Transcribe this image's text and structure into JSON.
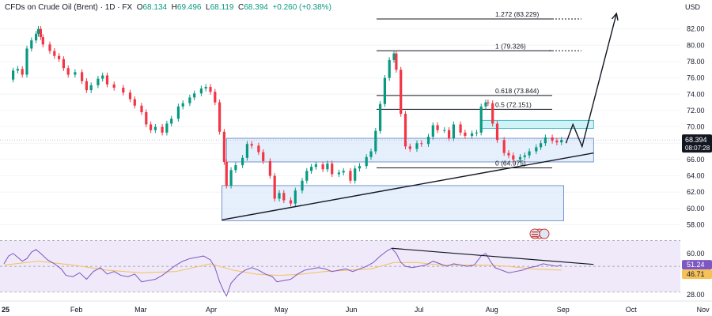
{
  "header": {
    "symbol_line": "CFDs on Crude Oil (Brent) · 1D · FX",
    "open_label": "O",
    "open": "68.134",
    "high_label": "H",
    "high": "69.496",
    "low_label": "L",
    "low": "68.119",
    "close_label": "C",
    "close": "68.394",
    "change": "+0.260 (+0.38%)",
    "currency": "USD"
  },
  "colors": {
    "up": "#089981",
    "down": "#f23645",
    "zone_fill": "#dbe8fb",
    "zone_stroke": "#5b7fbf",
    "cyan_fill": "#bff0f5",
    "cyan_stroke": "#2aa6b8",
    "rsi_line": "#7e57c2",
    "rsi_ma": "#f5c15b",
    "rsi_band": "#efe9f9",
    "price_tag": "#131722"
  },
  "chart_data": [
    {
      "type": "candlestick",
      "title": "",
      "ylabel": "",
      "ylim": [
        56.5,
        84.0
      ],
      "y_ticks": [
        58.0,
        60.0,
        62.0,
        64.0,
        66.0,
        68.0,
        70.0,
        72.0,
        74.0,
        76.0,
        78.0,
        80.0,
        82.0
      ],
      "x_labels": [
        "25",
        "Feb",
        "Mar",
        "Apr",
        "May",
        "Jun",
        "Jul",
        "Aug",
        "Sep",
        "Oct",
        "Nov"
      ],
      "x_label_days": [
        0,
        31,
        59,
        90,
        120,
        151,
        181,
        212,
        243,
        273,
        304
      ],
      "close_series": [
        [
          2,
          75.8
        ],
        [
          4,
          76.9
        ],
        [
          6,
          77.1
        ],
        [
          8,
          76.4
        ],
        [
          10,
          79.6
        ],
        [
          12,
          80.6
        ],
        [
          14,
          81.4
        ],
        [
          15,
          82.0
        ],
        [
          16,
          81.0
        ],
        [
          17,
          80.1
        ],
        [
          20,
          79.3
        ],
        [
          22,
          78.7
        ],
        [
          24,
          78.3
        ],
        [
          26,
          77.2
        ],
        [
          28,
          76.4
        ],
        [
          31,
          76.7
        ],
        [
          34,
          75.6
        ],
        [
          36,
          74.5
        ],
        [
          38,
          75.1
        ],
        [
          41,
          75.9
        ],
        [
          43,
          76.3
        ],
        [
          45,
          75.2
        ],
        [
          48,
          74.8
        ],
        [
          52,
          74.2
        ],
        [
          55,
          73.4
        ],
        [
          57,
          72.6
        ],
        [
          60,
          71.8
        ],
        [
          62,
          70.3
        ],
        [
          64,
          69.6
        ],
        [
          66,
          70.0
        ],
        [
          69,
          69.3
        ],
        [
          71,
          70.4
        ],
        [
          73,
          71.0
        ],
        [
          76,
          72.5
        ],
        [
          78,
          72.9
        ],
        [
          81,
          73.6
        ],
        [
          83,
          74.1
        ],
        [
          86,
          74.7
        ],
        [
          88,
          74.9
        ],
        [
          90,
          74.3
        ],
        [
          92,
          73.0
        ],
        [
          94,
          69.4
        ],
        [
          96,
          65.7
        ],
        [
          97,
          62.8
        ],
        [
          99,
          64.7
        ],
        [
          101,
          65.3
        ],
        [
          104,
          66.2
        ],
        [
          106,
          67.9
        ],
        [
          108,
          67.7
        ],
        [
          111,
          66.9
        ],
        [
          113,
          65.8
        ],
        [
          116,
          64.0
        ],
        [
          118,
          61.2
        ],
        [
          120,
          61.9
        ],
        [
          122,
          61.0
        ],
        [
          125,
          60.6
        ],
        [
          127,
          62.2
        ],
        [
          130,
          63.4
        ],
        [
          132,
          64.6
        ],
        [
          134,
          65.1
        ],
        [
          136,
          65.4
        ],
        [
          139,
          64.8
        ],
        [
          141,
          65.5
        ],
        [
          143,
          64.2
        ],
        [
          146,
          64.4
        ],
        [
          148,
          64.6
        ],
        [
          151,
          63.4
        ],
        [
          153,
          64.9
        ],
        [
          155,
          65.2
        ],
        [
          158,
          66.3
        ],
        [
          160,
          67.0
        ],
        [
          162,
          69.5
        ],
        [
          164,
          72.8
        ],
        [
          166,
          76.0
        ],
        [
          168,
          78.2
        ],
        [
          170,
          79.0
        ],
        [
          171,
          77.0
        ],
        [
          173,
          71.6
        ],
        [
          175,
          67.6
        ],
        [
          177,
          67.3
        ],
        [
          180,
          68.0
        ],
        [
          182,
          67.9
        ],
        [
          185,
          68.8
        ],
        [
          187,
          70.2
        ],
        [
          189,
          69.6
        ],
        [
          192,
          69.6
        ],
        [
          194,
          68.6
        ],
        [
          196,
          70.3
        ],
        [
          199,
          69.3
        ],
        [
          201,
          68.9
        ],
        [
          204,
          69.2
        ],
        [
          206,
          69.3
        ],
        [
          208,
          72.5
        ],
        [
          210,
          73.0
        ],
        [
          211,
          72.9
        ],
        [
          213,
          70.4
        ],
        [
          215,
          68.4
        ],
        [
          218,
          66.8
        ],
        [
          220,
          66.5
        ],
        [
          222,
          66.0
        ],
        [
          225,
          66.3
        ],
        [
          227,
          66.5
        ],
        [
          229,
          67.0
        ],
        [
          232,
          67.5
        ],
        [
          234,
          68.0
        ],
        [
          236,
          68.7
        ],
        [
          239,
          68.3
        ],
        [
          241,
          68.1
        ],
        [
          243,
          68.4
        ]
      ],
      "annotations": {
        "fib_levels": [
          {
            "ratio": "1.272",
            "value": 83.229
          },
          {
            "ratio": "1",
            "value": 79.326
          },
          {
            "ratio": "0.618",
            "value": 73.844
          },
          {
            "ratio": "0.5",
            "value": 72.151
          },
          {
            "ratio": "0",
            "value": 64.975
          }
        ],
        "fib_label_format": "{ratio} ({value})",
        "zones": [
          {
            "from_day": 97,
            "to_day": 257,
            "low": 65.7,
            "high": 68.6
          },
          {
            "from_day": 95,
            "to_day": 244,
            "low": 58.5,
            "high": 62.8
          },
          {
            "from_day": 208,
            "to_day": 257,
            "low": 69.8,
            "high": 70.8
          }
        ],
        "trendline": [
          [
            95,
            58.6
          ],
          [
            257,
            66.8
          ]
        ],
        "projection": [
          [
            245,
            68.0
          ],
          [
            248,
            70.3
          ],
          [
            252,
            67.6
          ],
          [
            267,
            83.9
          ]
        ]
      },
      "current_price": "68.394",
      "countdown": "08:07:28"
    },
    {
      "type": "line",
      "title": "",
      "ylim": [
        25,
        66
      ],
      "y_ticks": [
        60.0,
        28.0
      ],
      "levels": [
        70,
        50,
        30
      ],
      "rsi_value": "51.24",
      "rsi_ma_value": "46.71",
      "rsi_series": [
        [
          0,
          52
        ],
        [
          2,
          58
        ],
        [
          4,
          60
        ],
        [
          6,
          57
        ],
        [
          8,
          54
        ],
        [
          10,
          56
        ],
        [
          12,
          61
        ],
        [
          14,
          63
        ],
        [
          16,
          60
        ],
        [
          19,
          55
        ],
        [
          22,
          52
        ],
        [
          25,
          48
        ],
        [
          27,
          43
        ],
        [
          30,
          42
        ],
        [
          33,
          45
        ],
        [
          36,
          40
        ],
        [
          39,
          46
        ],
        [
          42,
          49
        ],
        [
          45,
          44
        ],
        [
          48,
          46
        ],
        [
          51,
          43
        ],
        [
          54,
          42
        ],
        [
          57,
          44
        ],
        [
          60,
          38
        ],
        [
          63,
          39
        ],
        [
          66,
          40
        ],
        [
          69,
          43
        ],
        [
          72,
          47
        ],
        [
          75,
          51
        ],
        [
          78,
          54
        ],
        [
          81,
          56
        ],
        [
          84,
          57
        ],
        [
          87,
          58
        ],
        [
          90,
          55
        ],
        [
          92,
          49
        ],
        [
          94,
          38
        ],
        [
          96,
          30
        ],
        [
          97,
          27
        ],
        [
          99,
          37
        ],
        [
          102,
          43
        ],
        [
          105,
          47
        ],
        [
          108,
          49
        ],
        [
          111,
          47
        ],
        [
          114,
          44
        ],
        [
          117,
          42
        ],
        [
          119,
          38
        ],
        [
          122,
          39
        ],
        [
          125,
          40
        ],
        [
          128,
          44
        ],
        [
          131,
          47
        ],
        [
          134,
          48
        ],
        [
          137,
          49
        ],
        [
          140,
          48
        ],
        [
          143,
          46
        ],
        [
          146,
          47
        ],
        [
          149,
          48
        ],
        [
          152,
          46
        ],
        [
          155,
          48
        ],
        [
          158,
          50
        ],
        [
          161,
          53
        ],
        [
          164,
          58
        ],
        [
          167,
          62
        ],
        [
          169,
          64
        ],
        [
          171,
          60
        ],
        [
          173,
          53
        ],
        [
          175,
          50
        ],
        [
          178,
          49
        ],
        [
          181,
          50
        ],
        [
          184,
          51
        ],
        [
          187,
          54
        ],
        [
          190,
          52
        ],
        [
          193,
          50
        ],
        [
          196,
          52
        ],
        [
          199,
          51
        ],
        [
          202,
          50
        ],
        [
          205,
          51
        ],
        [
          208,
          58
        ],
        [
          210,
          60
        ],
        [
          212,
          54
        ],
        [
          214,
          49
        ],
        [
          217,
          47
        ],
        [
          220,
          45
        ],
        [
          223,
          46
        ],
        [
          226,
          47
        ],
        [
          229,
          49
        ],
        [
          232,
          50
        ],
        [
          235,
          52
        ],
        [
          238,
          51
        ],
        [
          241,
          50
        ],
        [
          243,
          51
        ]
      ],
      "rsi_ma_series": [
        [
          0,
          51
        ],
        [
          15,
          54
        ],
        [
          30,
          51
        ],
        [
          45,
          47
        ],
        [
          60,
          45
        ],
        [
          75,
          46
        ],
        [
          90,
          52
        ],
        [
          100,
          47
        ],
        [
          110,
          44
        ],
        [
          120,
          43
        ],
        [
          130,
          44
        ],
        [
          140,
          46
        ],
        [
          150,
          47
        ],
        [
          160,
          48
        ],
        [
          170,
          53
        ],
        [
          180,
          53
        ],
        [
          190,
          51
        ],
        [
          200,
          51
        ],
        [
          210,
          51
        ],
        [
          220,
          50
        ],
        [
          230,
          48
        ],
        [
          243,
          47
        ]
      ],
      "divergence_line": [
        [
          169,
          64
        ],
        [
          257,
          51.5
        ]
      ]
    }
  ]
}
